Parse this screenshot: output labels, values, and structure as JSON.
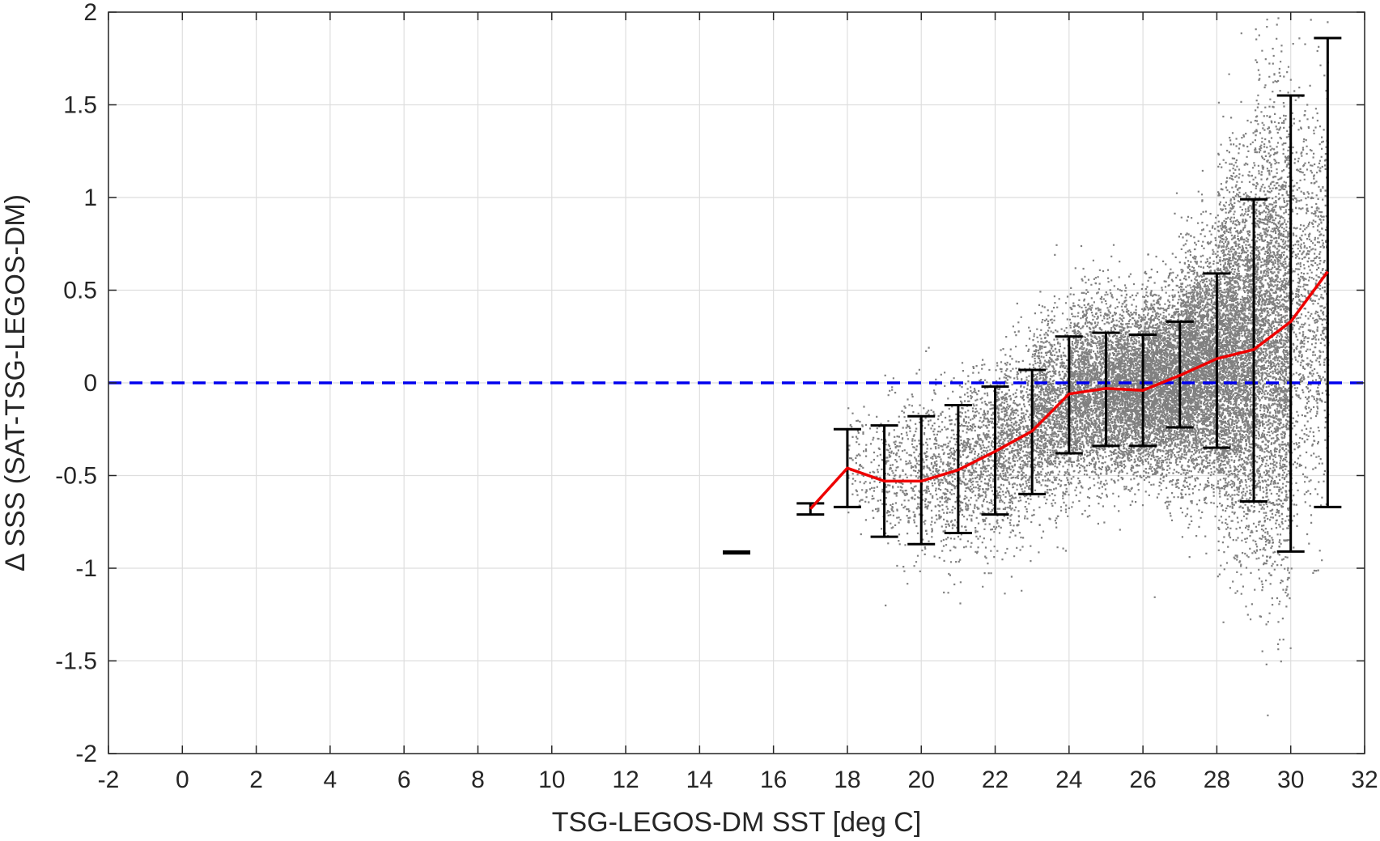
{
  "chart_data": {
    "type": "scatter",
    "xlabel": "TSG-LEGOS-DM SST [deg C]",
    "ylabel": "Δ SSS (SAT-TSG-LEGOS-DM)",
    "xlim": [
      -2,
      32
    ],
    "ylim": [
      -2,
      2
    ],
    "x_ticks": [
      "-2",
      "0",
      "2",
      "4",
      "6",
      "8",
      "10",
      "12",
      "14",
      "16",
      "18",
      "20",
      "22",
      "24",
      "26",
      "28",
      "30",
      "32"
    ],
    "y_ticks": [
      "2",
      "1.5",
      "1",
      "0.5",
      "0",
      "-0.5",
      "-1",
      "-1.5",
      "-2"
    ],
    "grid": true,
    "zero_reference_line": {
      "y": 0,
      "color": "#0000ee",
      "style": "dashed"
    },
    "scatter_color": "#808080",
    "mean_line": {
      "color": "#ee0000",
      "x": [
        17,
        18,
        19,
        20,
        21,
        22,
        23,
        24,
        25,
        26,
        27,
        28,
        29,
        30,
        31
      ],
      "y": [
        -0.68,
        -0.46,
        -0.53,
        -0.53,
        -0.47,
        -0.37,
        -0.26,
        -0.06,
        -0.03,
        -0.04,
        0.04,
        0.13,
        0.18,
        0.33,
        0.6
      ]
    },
    "error_bars": {
      "color": "#000000",
      "items": [
        {
          "x": 15,
          "low": -0.92,
          "high": -0.91
        },
        {
          "x": 17,
          "low": -0.71,
          "high": -0.65
        },
        {
          "x": 18,
          "low": -0.67,
          "high": -0.25
        },
        {
          "x": 19,
          "low": -0.83,
          "high": -0.23
        },
        {
          "x": 20,
          "low": -0.87,
          "high": -0.18
        },
        {
          "x": 21,
          "low": -0.81,
          "high": -0.12
        },
        {
          "x": 22,
          "low": -0.71,
          "high": -0.02
        },
        {
          "x": 23,
          "low": -0.6,
          "high": 0.07
        },
        {
          "x": 24,
          "low": -0.38,
          "high": 0.25
        },
        {
          "x": 25,
          "low": -0.34,
          "high": 0.27
        },
        {
          "x": 26,
          "low": -0.34,
          "high": 0.26
        },
        {
          "x": 27,
          "low": -0.24,
          "high": 0.33
        },
        {
          "x": 28,
          "low": -0.35,
          "high": 0.59
        },
        {
          "x": 29,
          "low": -0.64,
          "high": 0.99
        },
        {
          "x": 30,
          "low": -0.91,
          "high": 1.55
        },
        {
          "x": 31,
          "low": -0.67,
          "high": 1.86
        }
      ]
    },
    "scatter_envelope": [
      {
        "x": 18.5,
        "mean": -0.45,
        "sd": 0.15,
        "n": 150
      },
      {
        "x": 19.5,
        "mean": -0.5,
        "sd": 0.2,
        "n": 300
      },
      {
        "x": 20.5,
        "mean": -0.5,
        "sd": 0.22,
        "n": 450
      },
      {
        "x": 21.5,
        "mean": -0.42,
        "sd": 0.23,
        "n": 650
      },
      {
        "x": 22.5,
        "mean": -0.32,
        "sd": 0.24,
        "n": 900
      },
      {
        "x": 23.5,
        "mean": -0.16,
        "sd": 0.24,
        "n": 1300
      },
      {
        "x": 24.5,
        "mean": -0.05,
        "sd": 0.24,
        "n": 1800
      },
      {
        "x": 25.5,
        "mean": -0.04,
        "sd": 0.22,
        "n": 2200
      },
      {
        "x": 26.5,
        "mean": 0.0,
        "sd": 0.24,
        "n": 2600
      },
      {
        "x": 27.5,
        "mean": 0.08,
        "sd": 0.3,
        "n": 3000
      },
      {
        "x": 28.5,
        "mean": 0.15,
        "sd": 0.46,
        "n": 3300
      },
      {
        "x": 29.5,
        "mean": 0.25,
        "sd": 0.6,
        "n": 2800
      },
      {
        "x": 30.5,
        "mean": 0.45,
        "sd": 0.55,
        "n": 900
      }
    ]
  }
}
